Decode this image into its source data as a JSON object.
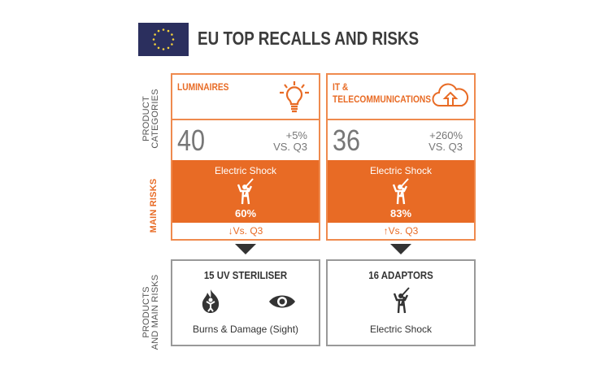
{
  "header": {
    "title": "EU TOP RECALLS AND RISKS",
    "flag_icon": "eu-flag-icon"
  },
  "row_labels": {
    "categories": [
      "PRODUCT",
      "CATEGORIES"
    ],
    "risks": "MAIN RISKS",
    "products": [
      "PRODUCTS",
      "AND MAIN RISKS"
    ]
  },
  "colors": {
    "accent": "#e86b25",
    "dark": "#333333"
  },
  "cards": [
    {
      "category": "LUMINAIRES",
      "icon": "lightbulb-icon",
      "count": "40",
      "change": "+5%",
      "vs": "VS. Q3",
      "risk": "Electric Shock",
      "risk_pct": "60%",
      "trend": "down",
      "trend_label": "Vs. Q3",
      "product": "15 UV STERILISER",
      "product_risk": "Burns & Damage (Sight)"
    },
    {
      "category": "IT &\nTELECOMMUNICATIONS",
      "category_lines": [
        "IT &",
        "TELECOMMUNICATIONS"
      ],
      "icon": "cloud-upload-icon",
      "count": "36",
      "change": "+260%",
      "vs": "VS. Q3",
      "risk": "Electric Shock",
      "risk_pct": "83%",
      "trend": "up",
      "trend_label": "Vs. Q3",
      "product": "16 ADAPTORS",
      "product_risk": "Electric Shock"
    }
  ],
  "trend_glyphs": {
    "down": "↓",
    "up": "↑"
  }
}
